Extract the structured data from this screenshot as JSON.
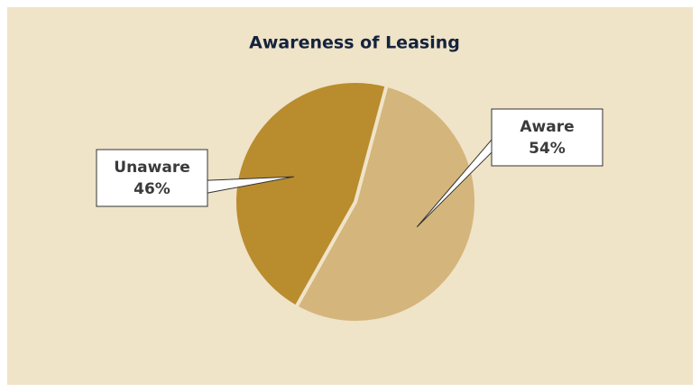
{
  "chart_data": {
    "type": "pie",
    "title": "Awareness of Leasing",
    "categories": [
      "Aware",
      "Unaware"
    ],
    "values": [
      54,
      46
    ],
    "value_labels": [
      "54%",
      "46%"
    ],
    "colors": [
      "#d4b57b",
      "#b98c2e"
    ]
  }
}
